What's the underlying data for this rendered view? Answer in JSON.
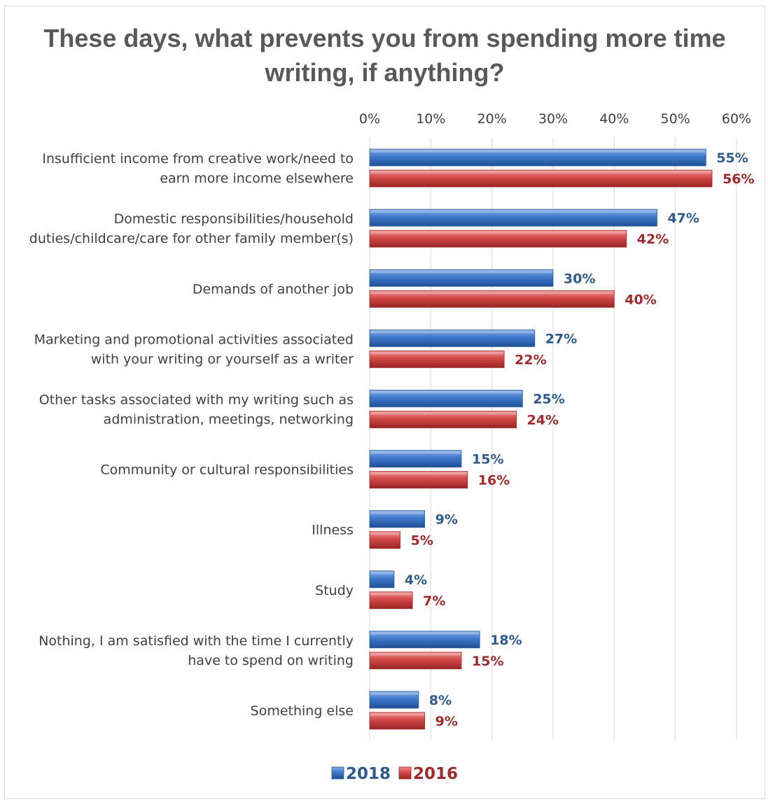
{
  "chart_data": {
    "type": "bar",
    "orientation": "horizontal",
    "title": "These days, what prevents you from spending more time writing, if anything?",
    "categories": [
      [
        "Insufficient income from creative work/need to",
        "earn more income elsewhere"
      ],
      [
        "Domestic responsibilities/household",
        "duties/childcare/care for other family member(s)"
      ],
      [
        "Demands of another job"
      ],
      [
        "Marketing and promotional activities associated",
        "with your writing or yourself as a writer"
      ],
      [
        "Other tasks associated with my writing such as",
        "administration, meetings, networking"
      ],
      [
        "Community or cultural responsibilities"
      ],
      [
        "Illness"
      ],
      [
        "Study"
      ],
      [
        "Nothing, I am satisfied with the time I currently",
        "have to spend on writing"
      ],
      [
        "Something else"
      ]
    ],
    "series": [
      {
        "name": "2018",
        "color": "#3f78c9",
        "label_color": "#2e5a8c",
        "values": [
          55,
          47,
          30,
          27,
          25,
          15,
          9,
          4,
          18,
          8
        ]
      },
      {
        "name": "2016",
        "color": "#d24848",
        "label_color": "#9e2a2b",
        "values": [
          56,
          42,
          40,
          22,
          24,
          16,
          5,
          7,
          15,
          9
        ]
      }
    ],
    "xlim": [
      0,
      60
    ],
    "x_ticks": [
      "0%",
      "10%",
      "20%",
      "30%",
      "40%",
      "50%",
      "60%"
    ],
    "value_suffix": "%",
    "grid": true,
    "legend_position": "bottom"
  }
}
